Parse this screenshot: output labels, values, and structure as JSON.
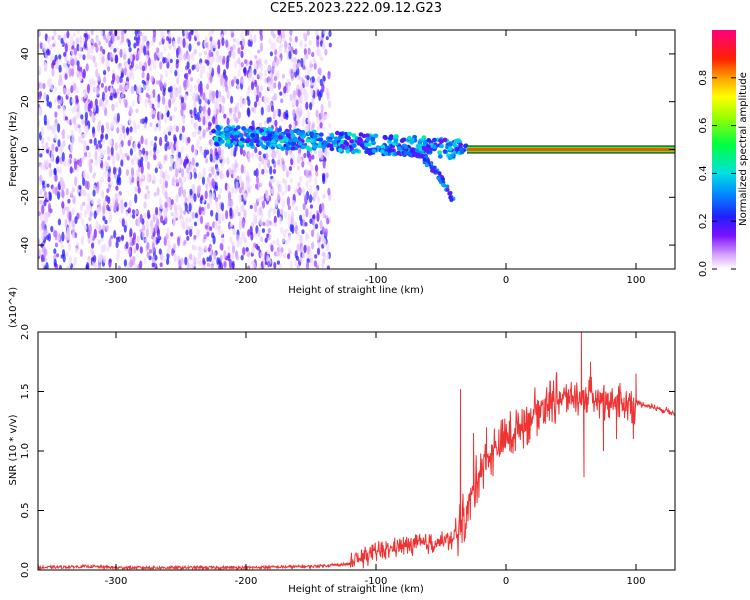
{
  "title": "C2E5.2023.222.09.12.G23",
  "colors": {
    "line": "#ee3333",
    "frame": "#000000",
    "background": "#ffffff"
  },
  "chart_data": [
    {
      "type": "heatmap",
      "xlabel": "Height of straight line (km)",
      "ylabel": "Frequency (Hz)",
      "xlim": [
        -360,
        130
      ],
      "ylim": [
        -50,
        50
      ],
      "xticks": [
        -300,
        -200,
        -100,
        0,
        100
      ],
      "yticks": [
        40,
        20,
        0,
        -20,
        -40
      ],
      "grid": false,
      "colorbar": {
        "label": "Normalized spectral amplitude",
        "range": [
          0.0,
          1.0
        ],
        "ticks": [
          "0.0",
          "0.2",
          "0.4",
          "0.6",
          "0.8"
        ],
        "colormap": "rainbow (white-violet-blue-cyan-green-yellow-red-magenta)",
        "position": "right"
      },
      "features": [
        {
          "region": "noise",
          "x_range": [
            -360,
            -135
          ],
          "y_range": [
            -50,
            50
          ],
          "amplitude": 0.1
        },
        {
          "region": "signal-trace",
          "x_range": [
            -225,
            -30
          ],
          "center_y": [
            6,
            0
          ],
          "amplitude": 0.4
        },
        {
          "region": "falling-branch",
          "x_range": [
            -80,
            -40
          ],
          "y_range": [
            -22,
            0
          ],
          "amplitude": 0.3
        },
        {
          "region": "carrier-line",
          "x_range": [
            -30,
            130
          ],
          "center_y": 0,
          "amplitude": 0.85
        }
      ]
    },
    {
      "type": "line",
      "xlabel": "Height of straight line (km)",
      "ylabel": "SNR (10 * v/v)",
      "y_multiplier": "(x10^4)",
      "xlim": [
        -360,
        130
      ],
      "ylim": [
        0,
        2.0
      ],
      "xticks": [
        -300,
        -200,
        -100,
        0,
        100
      ],
      "yticks": [
        "0.0",
        "0.5",
        "1.0",
        "1.5",
        "2.0"
      ],
      "grid": false,
      "series": [
        {
          "x": [
            -360,
            -320,
            -300,
            -250,
            -200,
            -150,
            -120,
            -100,
            -80,
            -60,
            -40,
            -30,
            -20,
            -10,
            0,
            10,
            20,
            30,
            40,
            50,
            60,
            70,
            80,
            90,
            100,
            110,
            120,
            130
          ],
          "y": [
            0.02,
            0.03,
            0.02,
            0.02,
            0.02,
            0.03,
            0.05,
            0.15,
            0.2,
            0.22,
            0.25,
            0.5,
            0.85,
            1.0,
            1.1,
            1.2,
            1.3,
            1.4,
            1.45,
            1.45,
            1.45,
            1.45,
            1.42,
            1.4,
            1.4,
            1.38,
            1.35,
            1.32
          ],
          "spikes": [
            [
              -35,
              1.52
            ],
            [
              -25,
              1.15
            ],
            [
              -15,
              1.2
            ],
            [
              58,
              2.0
            ],
            [
              60,
              0.78
            ],
            [
              65,
              1.75
            ],
            [
              75,
              1.0
            ],
            [
              85,
              1.1
            ],
            [
              98,
              1.1
            ],
            [
              100,
              1.65
            ]
          ]
        }
      ]
    }
  ]
}
